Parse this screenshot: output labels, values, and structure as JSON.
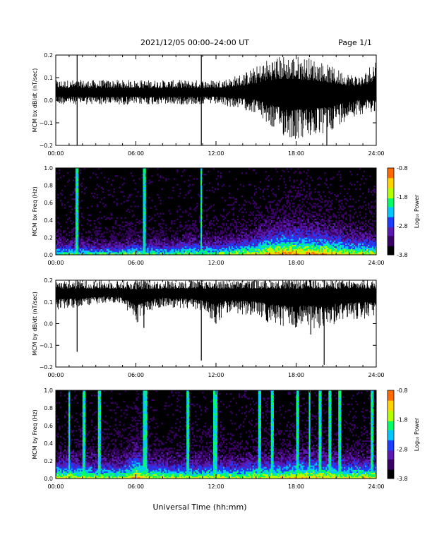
{
  "header": {
    "title": "2021/12/05  00:00–24:00 UT",
    "page": "Page 1/1"
  },
  "footer": {
    "xlabel": "Universal Time (hh:mm)"
  },
  "colorbar": {
    "label": "Log₁₀ Power",
    "ticks": [
      "-0.8",
      "-1.8",
      "-2.8",
      "-3.8"
    ],
    "tick_values": [
      -0.8,
      -1.8,
      -2.8,
      -3.8
    ],
    "range": [
      -3.8,
      -0.8
    ],
    "colormap": [
      "#000000",
      "#3a0066",
      "#5a1ab0",
      "#1e3cff",
      "#00c8ff",
      "#00ff66",
      "#b4ff00",
      "#ffd200",
      "#ff6a00",
      "#ff0000"
    ]
  },
  "chart_data": [
    {
      "type": "line",
      "title": "",
      "ylabel": "MCM bx dB/dt (nT/sec)",
      "xlabel": "",
      "xlim": [
        0,
        24
      ],
      "ylim": [
        -0.2,
        0.2
      ],
      "xticks": [
        "00:00",
        "06:00",
        "12:00",
        "18:00",
        "24:00"
      ],
      "yticks": [
        "0.2",
        "0.1",
        "0.0",
        "−0.1",
        "−0.2"
      ],
      "ytick_values": [
        0.2,
        0.1,
        0.0,
        -0.1,
        -0.2
      ],
      "series": [
        {
          "x_hours": [
            0,
            1,
            2,
            3,
            4,
            5,
            6,
            7,
            8,
            9,
            10,
            11,
            12,
            13,
            14,
            15,
            16,
            17,
            18,
            19,
            20,
            21,
            22,
            23,
            24
          ],
          "mean": [
            0.035,
            0.035,
            0.035,
            0.035,
            0.035,
            0.035,
            0.035,
            0.035,
            0.035,
            0.035,
            0.035,
            0.035,
            0.035,
            0.035,
            0.035,
            0.035,
            0.035,
            0.035,
            0.035,
            0.035,
            0.035,
            0.035,
            0.035,
            0.035,
            0.035
          ],
          "min": [
            -0.02,
            -0.02,
            -0.02,
            -0.02,
            -0.02,
            -0.02,
            -0.02,
            -0.02,
            -0.02,
            -0.02,
            -0.02,
            -0.02,
            -0.02,
            -0.03,
            -0.04,
            -0.06,
            -0.12,
            -0.16,
            -0.18,
            -0.17,
            -0.16,
            -0.12,
            -0.08,
            -0.06,
            -0.05
          ],
          "max": [
            0.09,
            0.09,
            0.09,
            0.09,
            0.09,
            0.09,
            0.09,
            0.09,
            0.09,
            0.09,
            0.09,
            0.09,
            0.09,
            0.1,
            0.12,
            0.15,
            0.19,
            0.2,
            0.2,
            0.19,
            0.17,
            0.14,
            0.12,
            0.11,
            0.2
          ],
          "spikes": [
            {
              "t": 1.6,
              "min": -0.2,
              "max": 0.2
            },
            {
              "t": 10.9,
              "min": -0.2,
              "max": 0.2
            },
            {
              "t": 20.3,
              "min": -0.2,
              "max": 0.05
            }
          ]
        }
      ]
    },
    {
      "type": "heatmap",
      "title": "",
      "ylabel": "MCM bx Freq (Hz)",
      "xlabel": "",
      "xlim": [
        0,
        24
      ],
      "ylim": [
        0,
        1
      ],
      "xticks": [
        "00:00",
        "06:00",
        "12:00",
        "18:00",
        "24:00"
      ],
      "yticks": [
        "1.0",
        "0.8",
        "0.6",
        "0.4",
        "0.2",
        "0.0"
      ],
      "ytick_values": [
        1.0,
        0.8,
        0.6,
        0.4,
        0.2,
        0.0
      ],
      "activity_hourly": [
        0.15,
        0.15,
        0.12,
        0.12,
        0.12,
        0.14,
        0.18,
        0.14,
        0.14,
        0.16,
        0.2,
        0.18,
        0.18,
        0.2,
        0.25,
        0.3,
        0.4,
        0.45,
        0.45,
        0.42,
        0.4,
        0.35,
        0.3,
        0.28
      ],
      "bright_lines_hours": [
        1.6,
        6.6,
        10.9
      ]
    },
    {
      "type": "line",
      "title": "",
      "ylabel": "MCM by dB/dt (nT/sec)",
      "xlabel": "",
      "xlim": [
        0,
        24
      ],
      "ylim": [
        -0.2,
        0.2
      ],
      "xticks": [
        "00:00",
        "06:00",
        "12:00",
        "18:00",
        "24:00"
      ],
      "yticks": [
        "0.2",
        "0.1",
        "0.0",
        "−0.1",
        "−0.2"
      ],
      "ytick_values": [
        0.2,
        0.1,
        0.0,
        -0.1,
        -0.2
      ],
      "series": [
        {
          "x_hours": [
            0,
            1,
            2,
            3,
            4,
            5,
            6,
            7,
            8,
            9,
            10,
            11,
            12,
            13,
            14,
            15,
            16,
            17,
            18,
            19,
            20,
            21,
            22,
            23,
            24
          ],
          "mean": [
            0.14,
            0.14,
            0.14,
            0.14,
            0.14,
            0.14,
            0.13,
            0.14,
            0.14,
            0.14,
            0.14,
            0.14,
            0.14,
            0.14,
            0.14,
            0.14,
            0.14,
            0.14,
            0.14,
            0.14,
            0.14,
            0.14,
            0.14,
            0.14,
            0.14
          ],
          "min": [
            0.06,
            0.07,
            0.08,
            0.09,
            0.1,
            0.09,
            0.0,
            0.05,
            0.08,
            0.07,
            0.07,
            0.05,
            0.0,
            0.05,
            0.04,
            0.03,
            0.0,
            -0.02,
            -0.03,
            -0.02,
            -0.03,
            0.0,
            0.02,
            0.02,
            0.03
          ],
          "max": [
            0.2,
            0.2,
            0.2,
            0.2,
            0.2,
            0.2,
            0.2,
            0.2,
            0.2,
            0.2,
            0.2,
            0.2,
            0.2,
            0.2,
            0.2,
            0.2,
            0.2,
            0.2,
            0.2,
            0.2,
            0.2,
            0.2,
            0.2,
            0.2,
            0.2
          ],
          "spikes": [
            {
              "t": 1.6,
              "min": -0.13,
              "max": 0.2
            },
            {
              "t": 6.6,
              "min": -0.02,
              "max": 0.2
            },
            {
              "t": 10.9,
              "min": -0.17,
              "max": 0.2
            },
            {
              "t": 12.0,
              "min": 0.0,
              "max": 0.2
            },
            {
              "t": 19.1,
              "min": -0.05,
              "max": 0.2
            },
            {
              "t": 20.1,
              "min": -0.19,
              "max": 0.2
            }
          ]
        }
      ]
    },
    {
      "type": "heatmap",
      "title": "",
      "ylabel": "MCM by Freq (Hz)",
      "xlabel": "",
      "xlim": [
        0,
        24
      ],
      "ylim": [
        0,
        1
      ],
      "xticks": [
        "00:00",
        "06:00",
        "12:00",
        "18:00",
        "24:00"
      ],
      "yticks": [
        "1.0",
        "0.8",
        "0.6",
        "0.4",
        "0.2",
        "0.0"
      ],
      "ytick_values": [
        1.0,
        0.8,
        0.6,
        0.4,
        0.2,
        0.0
      ],
      "activity_hourly": [
        0.3,
        0.3,
        0.25,
        0.25,
        0.25,
        0.25,
        0.45,
        0.3,
        0.25,
        0.25,
        0.25,
        0.25,
        0.3,
        0.25,
        0.25,
        0.3,
        0.3,
        0.3,
        0.35,
        0.35,
        0.35,
        0.3,
        0.3,
        0.3
      ],
      "bright_lines_hours": [
        1.0,
        2.1,
        3.3,
        6.6,
        6.8,
        9.9,
        11.9,
        12.0,
        15.3,
        16.2,
        18.1,
        19.0,
        19.8,
        20.5,
        21.3,
        23.7
      ]
    }
  ]
}
